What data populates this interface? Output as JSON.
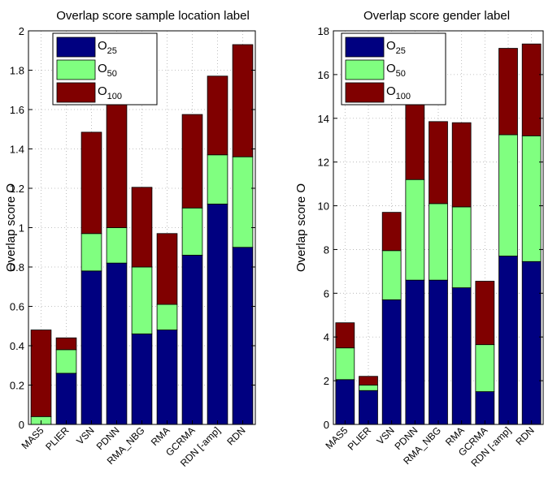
{
  "chart_data": [
    {
      "type": "bar",
      "stacked": true,
      "title": "Overlap score sample location label",
      "xlabel": "",
      "ylabel": "Overlap score O",
      "ylim": [
        0,
        2
      ],
      "yticks": [
        0,
        0.2,
        0.4,
        0.6,
        0.8,
        1,
        1.2,
        1.4,
        1.6,
        1.8,
        2
      ],
      "grid": true,
      "legend_position": "top-left",
      "categories": [
        "MAS5",
        "PLIER",
        "VSN",
        "PDNN",
        "RMA_NBG",
        "RMA",
        "GCRMA",
        "RDN [-amp]",
        "RDN"
      ],
      "series": [
        {
          "name": "O",
          "sub": "25",
          "color": "#000080",
          "values": [
            0,
            0.26,
            0.78,
            0.82,
            0.46,
            0.48,
            0.86,
            1.12,
            0.9
          ]
        },
        {
          "name": "O",
          "sub": "50",
          "color": "#80ff80",
          "values": [
            0.04,
            0.12,
            0.19,
            0.18,
            0.34,
            0.13,
            0.24,
            0.25,
            0.46
          ]
        },
        {
          "name": "O",
          "sub": "100",
          "color": "#800000",
          "values": [
            0.44,
            0.06,
            0.515,
            0.685,
            0.405,
            0.36,
            0.475,
            0.4,
            0.57
          ]
        }
      ]
    },
    {
      "type": "bar",
      "stacked": true,
      "title": "Overlap score gender label",
      "xlabel": "",
      "ylabel": "Overlap score O",
      "ylim": [
        0,
        18
      ],
      "yticks": [
        0,
        2,
        4,
        6,
        8,
        10,
        12,
        14,
        16,
        18
      ],
      "grid": true,
      "legend_position": "top-left",
      "categories": [
        "MAS5",
        "PLIER",
        "VSN",
        "PDNN",
        "RMA_NBG",
        "RMA",
        "GCRMA",
        "RDN [-amp]",
        "RDN"
      ],
      "series": [
        {
          "name": "O",
          "sub": "25",
          "color": "#000080",
          "values": [
            2.05,
            1.55,
            5.7,
            6.6,
            6.6,
            6.25,
            1.5,
            7.7,
            7.45
          ]
        },
        {
          "name": "O",
          "sub": "50",
          "color": "#80ff80",
          "values": [
            1.45,
            0.25,
            2.25,
            4.6,
            3.5,
            3.7,
            2.15,
            5.55,
            5.75
          ]
        },
        {
          "name": "O",
          "sub": "100",
          "color": "#800000",
          "values": [
            1.15,
            0.4,
            1.75,
            3.65,
            3.75,
            3.85,
            2.9,
            3.95,
            4.2
          ]
        }
      ]
    }
  ]
}
